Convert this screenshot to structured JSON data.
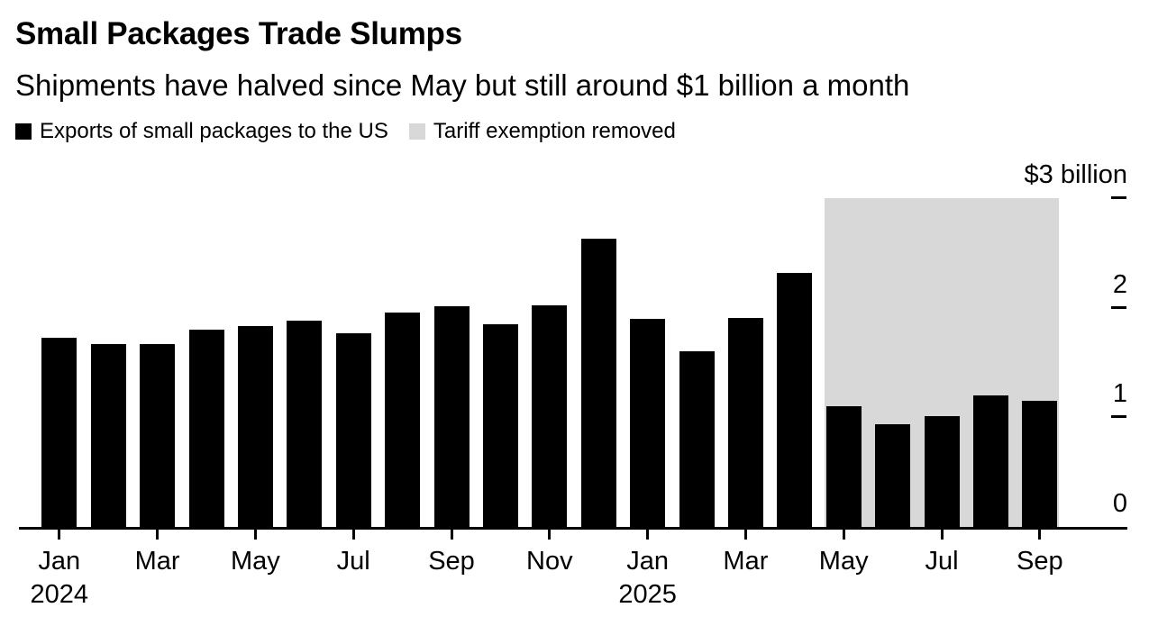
{
  "header": {
    "title": "Small Packages Trade Slumps",
    "subtitle": "Shipments have halved since May but still around $1 billion a month"
  },
  "legend": [
    {
      "label": "Exports of small packages to the US",
      "color": "#000000"
    },
    {
      "label": "Tariff exemption removed",
      "color": "#d8d8d8"
    }
  ],
  "chart_data": {
    "type": "bar",
    "title": "Small Packages Trade Slumps",
    "subtitle": "Shipments have halved since May but still around $1 billion a month",
    "unit": "$ billion",
    "grid": false,
    "legend_position": "top",
    "y_axis_side": "right",
    "ylim": [
      0,
      3
    ],
    "series_name": "Exports of small packages to the US",
    "bar_color": "#000000",
    "categories": [
      "Jan 2024",
      "Feb 2024",
      "Mar 2024",
      "Apr 2024",
      "May 2024",
      "Jun 2024",
      "Jul 2024",
      "Aug 2024",
      "Sep 2024",
      "Oct 2024",
      "Nov 2024",
      "Dec 2024",
      "Jan 2025",
      "Feb 2025",
      "Mar 2025",
      "Apr 2025",
      "May 2025",
      "Jun 2025",
      "Jul 2025",
      "Aug 2025",
      "Sep 2025"
    ],
    "values": [
      1.73,
      1.67,
      1.67,
      1.8,
      1.83,
      1.88,
      1.77,
      1.96,
      2.01,
      1.85,
      2.02,
      2.63,
      1.9,
      1.6,
      1.91,
      2.32,
      1.1,
      0.94,
      1.01,
      1.2,
      1.15
    ],
    "y_ticks": [
      {
        "value": 3,
        "label": "$3 billion",
        "has_dash": true
      },
      {
        "value": 2,
        "label": "2",
        "has_dash": true
      },
      {
        "value": 1,
        "label": "1",
        "has_dash": true
      },
      {
        "value": 0,
        "label": "0",
        "has_dash": false
      }
    ],
    "x_ticks": [
      {
        "month_index": 0,
        "label": "Jan"
      },
      {
        "month_index": 2,
        "label": "Mar"
      },
      {
        "month_index": 4,
        "label": "May"
      },
      {
        "month_index": 6,
        "label": "Jul"
      },
      {
        "month_index": 8,
        "label": "Sep"
      },
      {
        "month_index": 10,
        "label": "Nov"
      },
      {
        "month_index": 12,
        "label": "Jan"
      },
      {
        "month_index": 14,
        "label": "Mar"
      },
      {
        "month_index": 16,
        "label": "May"
      },
      {
        "month_index": 18,
        "label": "Jul"
      },
      {
        "month_index": 20,
        "label": "Sep"
      }
    ],
    "year_labels": [
      {
        "text": "2024",
        "month_index": 0
      },
      {
        "text": "2025",
        "month_index": 12
      }
    ],
    "highlight_band": {
      "label": "Tariff exemption removed",
      "color": "#d8d8d8",
      "start_index": 16,
      "end_index": 20
    }
  }
}
